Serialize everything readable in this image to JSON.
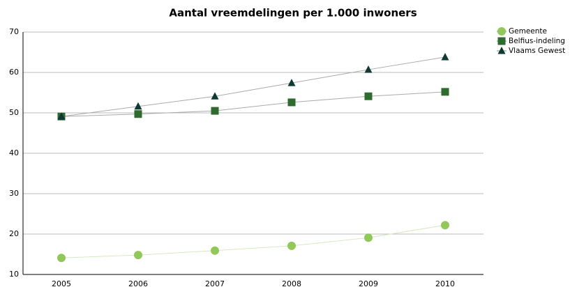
{
  "chart_data": {
    "type": "line",
    "title": "Aantal vreemdelingen per 1.000 inwoners",
    "categories": [
      "2005",
      "2006",
      "2007",
      "2008",
      "2009",
      "2010"
    ],
    "series": [
      {
        "name": "Gemeente",
        "color": "#92c85a",
        "marker": "circle",
        "values": [
          14.1,
          14.8,
          15.9,
          17.1,
          19.1,
          22.2
        ]
      },
      {
        "name": "Belfius-indeling",
        "color": "#2e6b2e",
        "marker": "square",
        "values": [
          49.1,
          49.7,
          50.5,
          52.6,
          54.1,
          55.2
        ]
      },
      {
        "name": "Vlaams Gewest",
        "color": "#0f3a33",
        "marker": "triangle",
        "values": [
          49.1,
          51.6,
          54.1,
          57.4,
          60.7,
          63.8
        ]
      }
    ],
    "ylim": [
      10,
      70
    ],
    "yticks": [
      10,
      20,
      30,
      40,
      50,
      60,
      70
    ],
    "grid": true,
    "legend": "top-right"
  }
}
